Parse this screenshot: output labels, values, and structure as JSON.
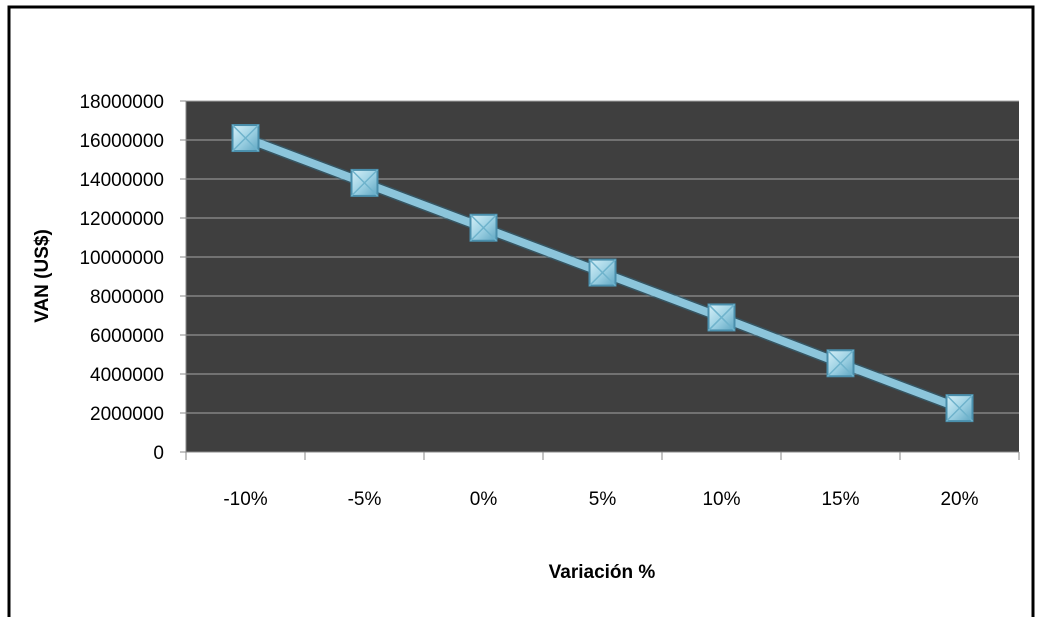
{
  "chart_data": {
    "type": "line",
    "xlabel": "Variación %",
    "ylabel": "VAN (US$)",
    "categories": [
      "-10%",
      "-5%",
      "0%",
      "5%",
      "10%",
      "15%",
      "20%"
    ],
    "series": [
      {
        "values": [
          16100000,
          13800000,
          11500000,
          9200000,
          6900000,
          4550000,
          2250000
        ]
      }
    ],
    "ylim": [
      0,
      18000000
    ],
    "yticks": [
      "0",
      "2000000",
      "4000000",
      "6000000",
      "8000000",
      "10000000",
      "12000000",
      "14000000",
      "16000000",
      "18000000"
    ],
    "grid": true,
    "legend": "none",
    "colors": {
      "plot_background": "#3f3f3f",
      "gridline": "#a6a6a6",
      "line": "#8cc5db",
      "marker_fill": "#a9dbea",
      "marker_edge": "#4a8fac"
    }
  }
}
